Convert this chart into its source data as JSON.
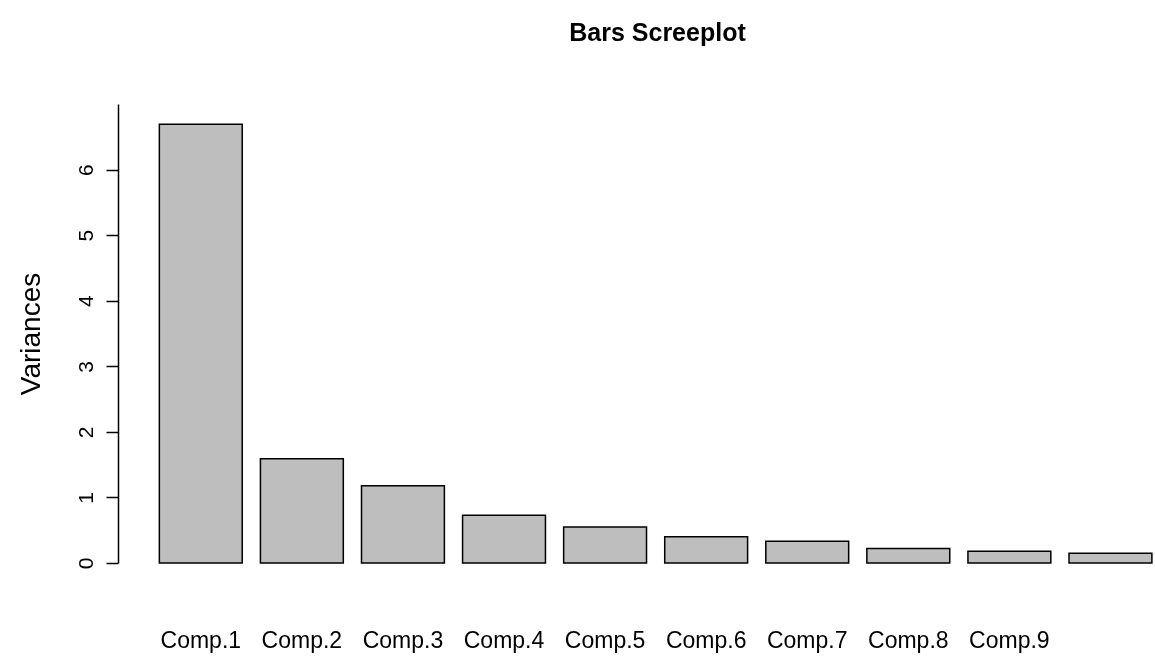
{
  "chart_data": {
    "type": "bar",
    "title": "Bars Screeplot",
    "ylabel": "Variances",
    "categories": [
      "Comp.1",
      "Comp.2",
      "Comp.3",
      "Comp.4",
      "Comp.5",
      "Comp.6",
      "Comp.7",
      "Comp.8",
      "Comp.9",
      null
    ],
    "values": [
      6.69,
      1.59,
      1.18,
      0.73,
      0.55,
      0.4,
      0.33,
      0.22,
      0.18,
      0.15
    ],
    "color": "#bebebe",
    "ylim": [
      0,
      7
    ],
    "yticks": [
      0,
      1,
      2,
      3,
      4,
      5,
      6
    ]
  }
}
